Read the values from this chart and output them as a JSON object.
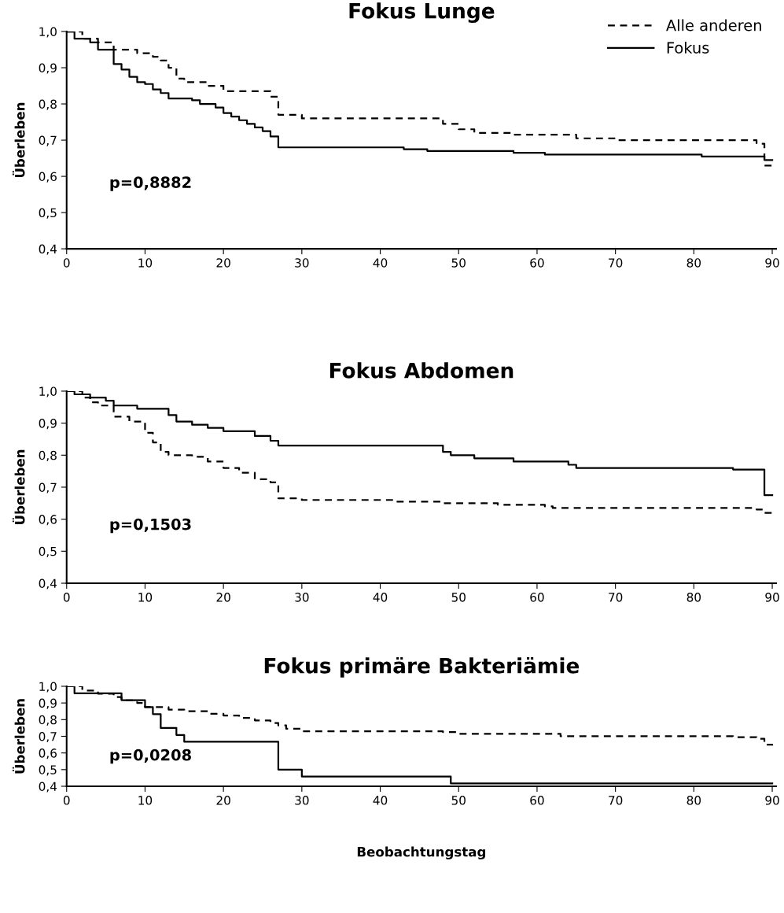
{
  "chart_data": [
    {
      "type": "step",
      "title": "Fokus Lunge",
      "ylabel": "Überleben",
      "xlim": [
        0,
        90.5
      ],
      "ylim": [
        0.4,
        1.0
      ],
      "xticks": [
        0,
        10,
        20,
        30,
        40,
        50,
        60,
        70,
        80,
        90
      ],
      "yticks": [
        {
          "value": 0.4,
          "label": "0,4"
        },
        {
          "value": 0.5,
          "label": "0,5"
        },
        {
          "value": 0.6,
          "label": "0,6"
        },
        {
          "value": 0.7,
          "label": "0,7"
        },
        {
          "value": 0.8,
          "label": "0,8"
        },
        {
          "value": 0.9,
          "label": "0,9"
        },
        {
          "value": 1.0,
          "label": "1,0"
        }
      ],
      "grid": false,
      "legend": "top right",
      "annotations": [
        "p=0,8882"
      ],
      "series": [
        {
          "name": "Alle anderen",
          "color": "#000000",
          "line_style": "dashed",
          "x": [
            0,
            2,
            4,
            6,
            9,
            11,
            12,
            13,
            14,
            15,
            18,
            20,
            26,
            27,
            30,
            48,
            50,
            52,
            57,
            65,
            70,
            88,
            89,
            90
          ],
          "values": [
            1.0,
            0.98,
            0.97,
            0.95,
            0.94,
            0.93,
            0.92,
            0.9,
            0.87,
            0.86,
            0.85,
            0.835,
            0.82,
            0.77,
            0.76,
            0.745,
            0.73,
            0.72,
            0.715,
            0.705,
            0.7,
            0.69,
            0.63,
            0.625
          ]
        },
        {
          "name": "Fokus",
          "color": "#000000",
          "line_style": "solid",
          "x": [
            0,
            1,
            3,
            4,
            6,
            7,
            8,
            9,
            10,
            11,
            12,
            13,
            16,
            17,
            19,
            20,
            21,
            22,
            23,
            24,
            25,
            26,
            27,
            43,
            46,
            57,
            61,
            81,
            89,
            90
          ],
          "values": [
            1.0,
            0.98,
            0.97,
            0.95,
            0.91,
            0.895,
            0.875,
            0.86,
            0.855,
            0.84,
            0.83,
            0.815,
            0.81,
            0.8,
            0.79,
            0.775,
            0.765,
            0.755,
            0.745,
            0.735,
            0.725,
            0.71,
            0.68,
            0.675,
            0.67,
            0.665,
            0.66,
            0.655,
            0.645,
            0.645
          ]
        }
      ]
    },
    {
      "type": "step",
      "title": "Fokus Abdomen",
      "ylabel": "Überleben",
      "xlim": [
        0,
        90.5
      ],
      "ylim": [
        0.4,
        1.0
      ],
      "xticks": [
        0,
        10,
        20,
        30,
        40,
        50,
        60,
        70,
        80,
        90
      ],
      "yticks": [
        {
          "value": 0.4,
          "label": "0,4"
        },
        {
          "value": 0.5,
          "label": "0,5"
        },
        {
          "value": 0.6,
          "label": "0,6"
        },
        {
          "value": 0.7,
          "label": "0,7"
        },
        {
          "value": 0.8,
          "label": "0,8"
        },
        {
          "value": 0.9,
          "label": "0,9"
        },
        {
          "value": 1.0,
          "label": "1,0"
        }
      ],
      "grid": false,
      "annotations": [
        "p=0,1503"
      ],
      "series": [
        {
          "color": "#000000",
          "line_style": "dashed",
          "x": [
            0,
            2,
            3,
            4,
            6,
            8,
            10,
            11,
            12,
            13,
            16,
            18,
            20,
            22,
            24,
            26,
            27,
            30,
            42,
            48,
            55,
            61,
            62,
            88,
            89,
            90
          ],
          "values": [
            1.0,
            0.98,
            0.965,
            0.955,
            0.92,
            0.905,
            0.87,
            0.84,
            0.81,
            0.8,
            0.795,
            0.78,
            0.76,
            0.745,
            0.725,
            0.715,
            0.665,
            0.66,
            0.655,
            0.65,
            0.645,
            0.64,
            0.635,
            0.63,
            0.62,
            0.62
          ]
        },
        {
          "color": "#000000",
          "line_style": "solid",
          "x": [
            0,
            1,
            3,
            5,
            6,
            9,
            13,
            14,
            16,
            18,
            20,
            24,
            26,
            27,
            48,
            49,
            52,
            57,
            64,
            65,
            85,
            89,
            90
          ],
          "values": [
            1.0,
            0.99,
            0.98,
            0.97,
            0.955,
            0.945,
            0.925,
            0.905,
            0.895,
            0.885,
            0.875,
            0.86,
            0.845,
            0.83,
            0.81,
            0.8,
            0.79,
            0.78,
            0.77,
            0.76,
            0.755,
            0.675,
            0.675
          ]
        }
      ]
    },
    {
      "type": "step",
      "title": "Fokus primäre Bakteriämie",
      "ylabel": "Überleben",
      "xlabel": "Beobachtungstag",
      "xlim": [
        0,
        90.5
      ],
      "ylim": [
        0.4,
        1.0
      ],
      "xticks": [
        0,
        10,
        20,
        30,
        40,
        50,
        60,
        70,
        80,
        90
      ],
      "yticks": [
        {
          "value": 0.4,
          "label": "0,4"
        },
        {
          "value": 0.5,
          "label": "0,5"
        },
        {
          "value": 0.6,
          "label": "0,6"
        },
        {
          "value": 0.7,
          "label": "0,7"
        },
        {
          "value": 0.8,
          "label": "0,8"
        },
        {
          "value": 0.9,
          "label": "0,9"
        },
        {
          "value": 1.0,
          "label": "1,0"
        }
      ],
      "grid": false,
      "annotations": [
        "p=0,0208"
      ],
      "series": [
        {
          "color": "#000000",
          "line_style": "dashed",
          "x": [
            0,
            2,
            4,
            6,
            7,
            9,
            10,
            13,
            15,
            18,
            20,
            22,
            24,
            26,
            27,
            28,
            30,
            48,
            50,
            63,
            85,
            88,
            89,
            90
          ],
          "values": [
            1.0,
            0.975,
            0.955,
            0.935,
            0.915,
            0.9,
            0.875,
            0.86,
            0.85,
            0.835,
            0.825,
            0.81,
            0.795,
            0.78,
            0.765,
            0.745,
            0.73,
            0.725,
            0.715,
            0.7,
            0.695,
            0.685,
            0.65,
            0.645
          ]
        },
        {
          "color": "#000000",
          "line_style": "solid",
          "x": [
            0,
            1,
            7,
            10,
            11,
            12,
            14,
            15,
            27,
            30,
            49,
            90
          ],
          "values": [
            1.0,
            0.958,
            0.917,
            0.875,
            0.833,
            0.75,
            0.708,
            0.667,
            0.5,
            0.458,
            0.417,
            0.417
          ]
        }
      ]
    }
  ]
}
